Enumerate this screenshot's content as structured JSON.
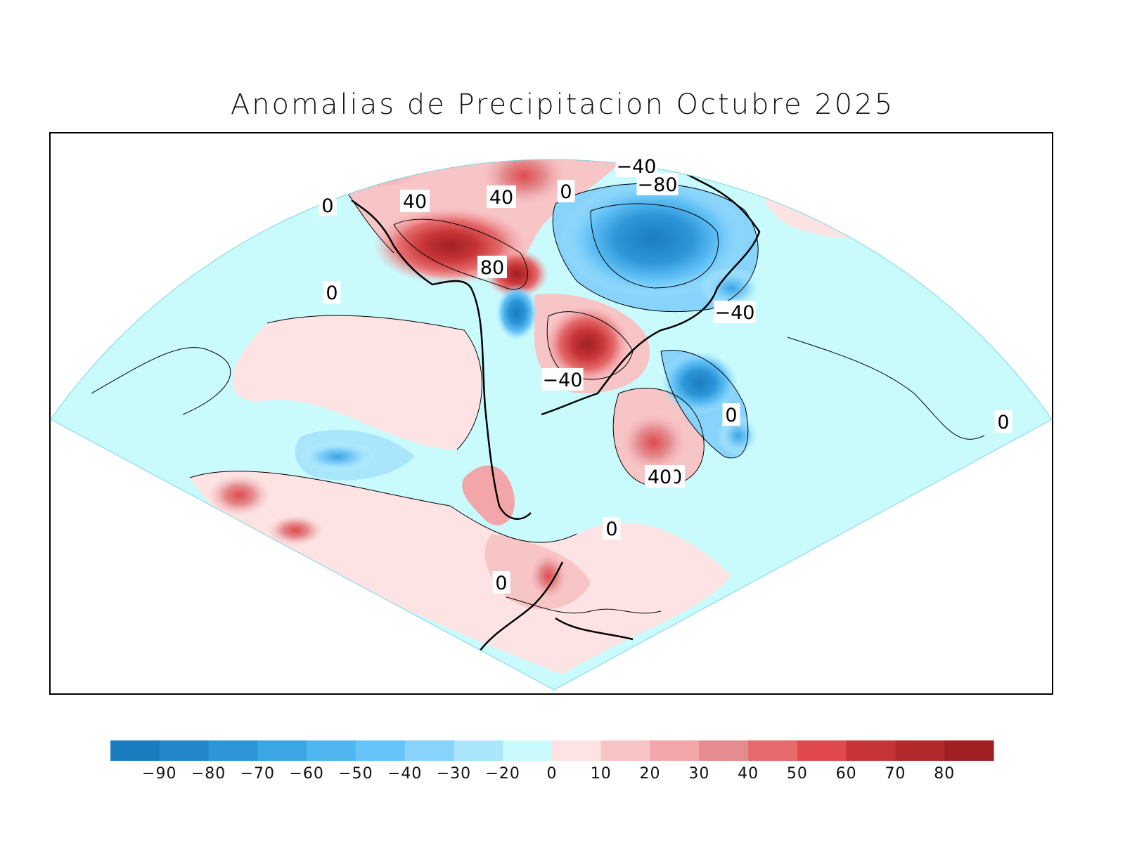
{
  "title": "Anomalias de Precipitacion Octubre 2025",
  "colorbar": {
    "ticks": [
      "−90",
      "−80",
      "−70",
      "−60",
      "−50",
      "−40",
      "−30",
      "−20",
      "0",
      "10",
      "20",
      "30",
      "40",
      "50",
      "60",
      "70",
      "80"
    ],
    "colors": [
      "#1a7dc0",
      "#2288cb",
      "#2c96d8",
      "#3aa6e4",
      "#4fb6ef",
      "#66c4f8",
      "#88d3fb",
      "#a9e5fb",
      "#c9fbfd",
      "#fde3e4",
      "#f8c5c7",
      "#f3a6a9",
      "#e48c8f",
      "#e56a6c",
      "#e04a4d",
      "#c73436",
      "#b42a2c",
      "#a02023"
    ]
  },
  "contour_labels": [
    "0",
    "40",
    "80",
    "−40",
    "−80",
    "0",
    "40",
    "−40",
    "0",
    "−40",
    "0",
    "40",
    "0",
    "0",
    "40",
    "0"
  ]
}
